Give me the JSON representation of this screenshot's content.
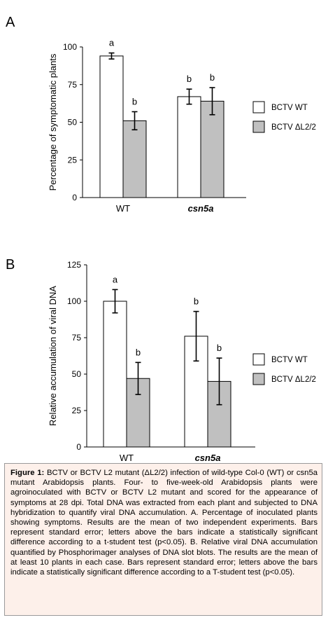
{
  "chart_data": [
    {
      "type": "bar",
      "panel": "A",
      "ylabel": "Percentage of symptomatic plants",
      "xlabel": "",
      "ylim": [
        0,
        100
      ],
      "yticks": [
        0,
        25,
        50,
        75,
        100
      ],
      "categories": [
        "WT",
        "csn5a"
      ],
      "series": [
        {
          "name": "BCTV WT",
          "color": "#ffffff",
          "values": [
            94,
            67
          ],
          "errors": [
            2,
            5
          ],
          "letters": [
            "a",
            "b"
          ]
        },
        {
          "name": "BCTV ΔL2/2",
          "color": "#c0c0c0",
          "values": [
            51,
            64
          ],
          "errors": [
            6,
            9
          ],
          "letters": [
            "b",
            "b"
          ]
        }
      ],
      "legend": "right"
    },
    {
      "type": "bar",
      "panel": "B",
      "ylabel": "Relative accumulation of viral DNA",
      "xlabel": "",
      "ylim": [
        0,
        125
      ],
      "yticks": [
        0,
        25,
        50,
        75,
        100,
        125
      ],
      "categories": [
        "WT",
        "csn5a"
      ],
      "series": [
        {
          "name": "BCTV WT",
          "color": "#ffffff",
          "values": [
            100,
            76
          ],
          "errors": [
            8,
            17
          ],
          "letters": [
            "a",
            "b"
          ]
        },
        {
          "name": "BCTV ΔL2/2",
          "color": "#c0c0c0",
          "values": [
            47,
            45
          ],
          "errors": [
            11,
            16
          ],
          "letters": [
            "b",
            "b"
          ]
        }
      ],
      "legend": "right"
    }
  ],
  "caption": {
    "label": "Figure 1:",
    "text": " BCTV or BCTV L2 mutant (ΔL2/2) infection of wild-type Col-0 (WT) or csn5a mutant Arabidopsis plants. Four- to five-week-old Arabidopsis plants were agroinoculated with BCTV or BCTV L2 mutant and scored for the appearance of symptoms at 28 dpi. Total DNA was extracted from each plant and subjected to DNA hybridization to quantify viral DNA accumulation. A. Percentage of inoculated plants showing symptoms. Results are the mean of two independent experiments. Bars represent standard error; letters above the bars indicate a statistically significant difference according to a t-student test (p<0.05). B. Relative viral DNA accumulation quantified by Phosphorimager analyses of DNA slot blots. The results are the mean of at least 10 plants in each case. Bars represent standard error; letters above the bars indicate a statistically significant difference according to a T-student test (p<0.05)."
  }
}
